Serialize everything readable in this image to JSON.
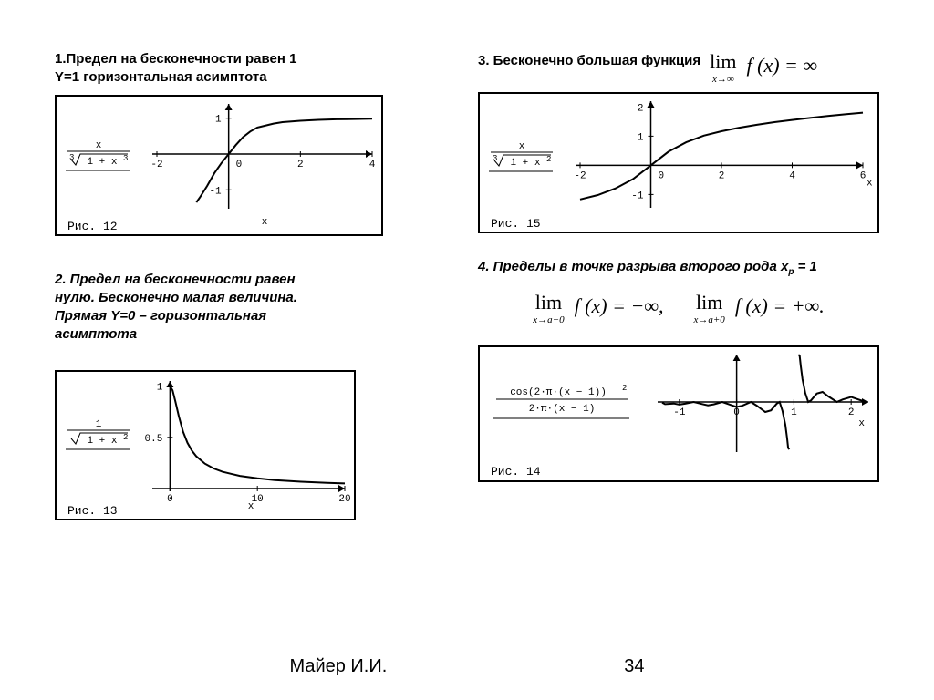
{
  "section1": {
    "heading_line1": "1.Предел на бесконечности равен 1",
    "heading_line2": "Y=1 горизонтальная асимптота",
    "func_num": "x",
    "func_denom": "1 + x",
    "func_root_index": "3",
    "func_exp": "3",
    "caption": "Рис.  12",
    "xlabel": "x",
    "xticks": [
      "-2",
      "0",
      "2",
      "4"
    ],
    "yticks": [
      "-1",
      "1"
    ],
    "xlim": [
      -2,
      4
    ],
    "ylim": [
      -1.4,
      1.4
    ],
    "curve_color": "#000000",
    "border_color": "#000000",
    "points": [
      [
        -0.9,
        -1.35
      ],
      [
        -0.8,
        -1.21
      ],
      [
        -0.6,
        -0.89
      ],
      [
        -0.4,
        -0.54
      ],
      [
        -0.2,
        -0.25
      ],
      [
        0,
        0
      ],
      [
        0.2,
        0.25
      ],
      [
        0.4,
        0.47
      ],
      [
        0.6,
        0.63
      ],
      [
        0.8,
        0.74
      ],
      [
        1,
        0.79
      ],
      [
        1.25,
        0.85
      ],
      [
        1.5,
        0.89
      ],
      [
        2,
        0.93
      ],
      [
        2.5,
        0.955
      ],
      [
        3,
        0.97
      ],
      [
        3.5,
        0.978
      ],
      [
        4,
        0.984
      ]
    ]
  },
  "section2": {
    "heading": "2. Предел на бесконечности равен нулю. Бесконечно малая величина. Прямая Y=0 – горизонтальная асимптота",
    "func_num": "1",
    "func_denom": "1 + x",
    "func_exp": "2",
    "caption": "Рис.  13",
    "xlabel": "x",
    "xticks": [
      "0",
      "10",
      "20"
    ],
    "yticks": [
      "0.5",
      "1"
    ],
    "xlim": [
      -1.5,
      20
    ],
    "ylim": [
      0,
      1.05
    ],
    "curve_color": "#000000",
    "points": [
      [
        0,
        1
      ],
      [
        0.3,
        0.958
      ],
      [
        0.6,
        0.857
      ],
      [
        1,
        0.707
      ],
      [
        1.5,
        0.555
      ],
      [
        2,
        0.447
      ],
      [
        2.5,
        0.371
      ],
      [
        3,
        0.316
      ],
      [
        4,
        0.243
      ],
      [
        5,
        0.196
      ],
      [
        6,
        0.164
      ],
      [
        8,
        0.124
      ],
      [
        10,
        0.0995
      ],
      [
        12,
        0.083
      ],
      [
        15,
        0.0665
      ],
      [
        18,
        0.0555
      ],
      [
        20,
        0.05
      ]
    ]
  },
  "section3": {
    "heading_text": "3.  Бесконечно большая функция",
    "formula_lim": "lim",
    "formula_sub": "x→∞",
    "formula_body": "f (x)  =  ∞",
    "func_num": "x",
    "func_denom": "1 + x",
    "func_root_index": "3",
    "func_exp": "2",
    "caption": "Рис.  15",
    "xlabel": "x",
    "xticks": [
      "-2",
      "0",
      "2",
      "4",
      "6"
    ],
    "yticks": [
      "-1",
      "1",
      "2"
    ],
    "xlim": [
      -2,
      6
    ],
    "ylim": [
      -1.3,
      2.2
    ],
    "curve_color": "#000000",
    "points": [
      [
        -2,
        -1.17
      ],
      [
        -1.5,
        -1.02
      ],
      [
        -1,
        -0.79
      ],
      [
        -0.5,
        -0.47
      ],
      [
        0,
        0
      ],
      [
        0.5,
        0.47
      ],
      [
        1,
        0.79
      ],
      [
        1.5,
        1.02
      ],
      [
        2,
        1.17
      ],
      [
        2.5,
        1.29
      ],
      [
        3,
        1.39
      ],
      [
        3.5,
        1.48
      ],
      [
        4,
        1.556
      ],
      [
        4.5,
        1.625
      ],
      [
        5,
        1.69
      ],
      [
        5.5,
        1.75
      ],
      [
        6,
        1.805
      ]
    ]
  },
  "section4": {
    "heading_part1": "4. Пределы в точке разрыва второго рода x",
    "heading_sub": "p",
    "heading_part2": " = 1",
    "formula_left": "lim",
    "formula_left_sub": "x→a−0",
    "formula_left_body": "f (x) = −∞,",
    "formula_right": "lim",
    "formula_right_sub": "x→a+0",
    "formula_right_body": "f (x) = +∞.",
    "func_num": "cos(2·π·(x − 1))",
    "func_num_exp": "2",
    "func_denom": "2·π·(x − 1)",
    "caption": "Рис.  14",
    "xlabel": "x",
    "xticks": [
      "-1",
      "0",
      "1",
      "2"
    ],
    "xlim": [
      -1.3,
      2.3
    ],
    "ylim": [
      -1.5,
      1.5
    ],
    "curve_color": "#000000",
    "points_left": [
      [
        -1.3,
        -0.02
      ],
      [
        -1.25,
        -0.069
      ],
      [
        -1.1,
        -0.05
      ],
      [
        -1.0,
        -0.08
      ],
      [
        -0.9,
        -0.055
      ],
      [
        -0.75,
        0.0
      ],
      [
        -0.6,
        -0.066
      ],
      [
        -0.5,
        -0.106
      ],
      [
        -0.4,
        -0.075
      ],
      [
        -0.25,
        0.0
      ],
      [
        -0.1,
        -0.096
      ],
      [
        0.0,
        -0.159
      ],
      [
        0.1,
        -0.117
      ],
      [
        0.25,
        0.0
      ],
      [
        0.35,
        -0.114
      ],
      [
        0.5,
        -0.318
      ],
      [
        0.6,
        -0.264
      ],
      [
        0.7,
        -0.051
      ],
      [
        0.75,
        0.0
      ],
      [
        0.8,
        -0.276
      ],
      [
        0.85,
        -0.725
      ],
      [
        0.88,
        -1.142
      ],
      [
        0.9,
        -1.46
      ],
      [
        0.92,
        -1.5
      ]
    ],
    "points_right": [
      [
        1.08,
        1.5
      ],
      [
        1.1,
        1.46
      ],
      [
        1.12,
        1.142
      ],
      [
        1.15,
        0.725
      ],
      [
        1.2,
        0.276
      ],
      [
        1.25,
        0.0
      ],
      [
        1.3,
        0.051
      ],
      [
        1.4,
        0.264
      ],
      [
        1.5,
        0.318
      ],
      [
        1.6,
        0.176
      ],
      [
        1.75,
        0.0
      ],
      [
        1.85,
        0.078
      ],
      [
        2.0,
        0.159
      ],
      [
        2.1,
        0.096
      ],
      [
        2.25,
        0.0
      ]
    ]
  },
  "footer": {
    "author": "Майер И.И.",
    "page": "34"
  },
  "colors": {
    "text": "#000000",
    "bg": "#ffffff"
  }
}
